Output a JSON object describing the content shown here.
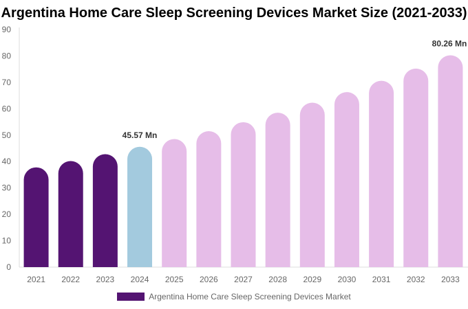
{
  "chart_data": {
    "type": "bar",
    "title": "Argentina Home Care Sleep Screening Devices Market Size (2021-2033)",
    "categories": [
      "2021",
      "2022",
      "2023",
      "2024",
      "2025",
      "2026",
      "2027",
      "2028",
      "2029",
      "2030",
      "2031",
      "2032",
      "2033"
    ],
    "series": [
      {
        "name": "Argentina Home Care Sleep Screening Devices Market",
        "values": [
          37.8,
          40.2,
          42.8,
          45.57,
          48.5,
          51.5,
          54.9,
          58.5,
          62.3,
          66.3,
          70.6,
          75.2,
          80.26
        ]
      }
    ],
    "data_labels": {
      "3": "45.57 Mn",
      "12": "80.26 Mn"
    },
    "ylim": [
      0,
      90
    ],
    "yticks": [
      0,
      10,
      20,
      30,
      40,
      50,
      60,
      70,
      80,
      90
    ],
    "grid": false,
    "legend_position": "bottom",
    "colors": {
      "historical": "#541472",
      "base_year": "#a3cade",
      "forecast": "#e6bde8"
    }
  }
}
